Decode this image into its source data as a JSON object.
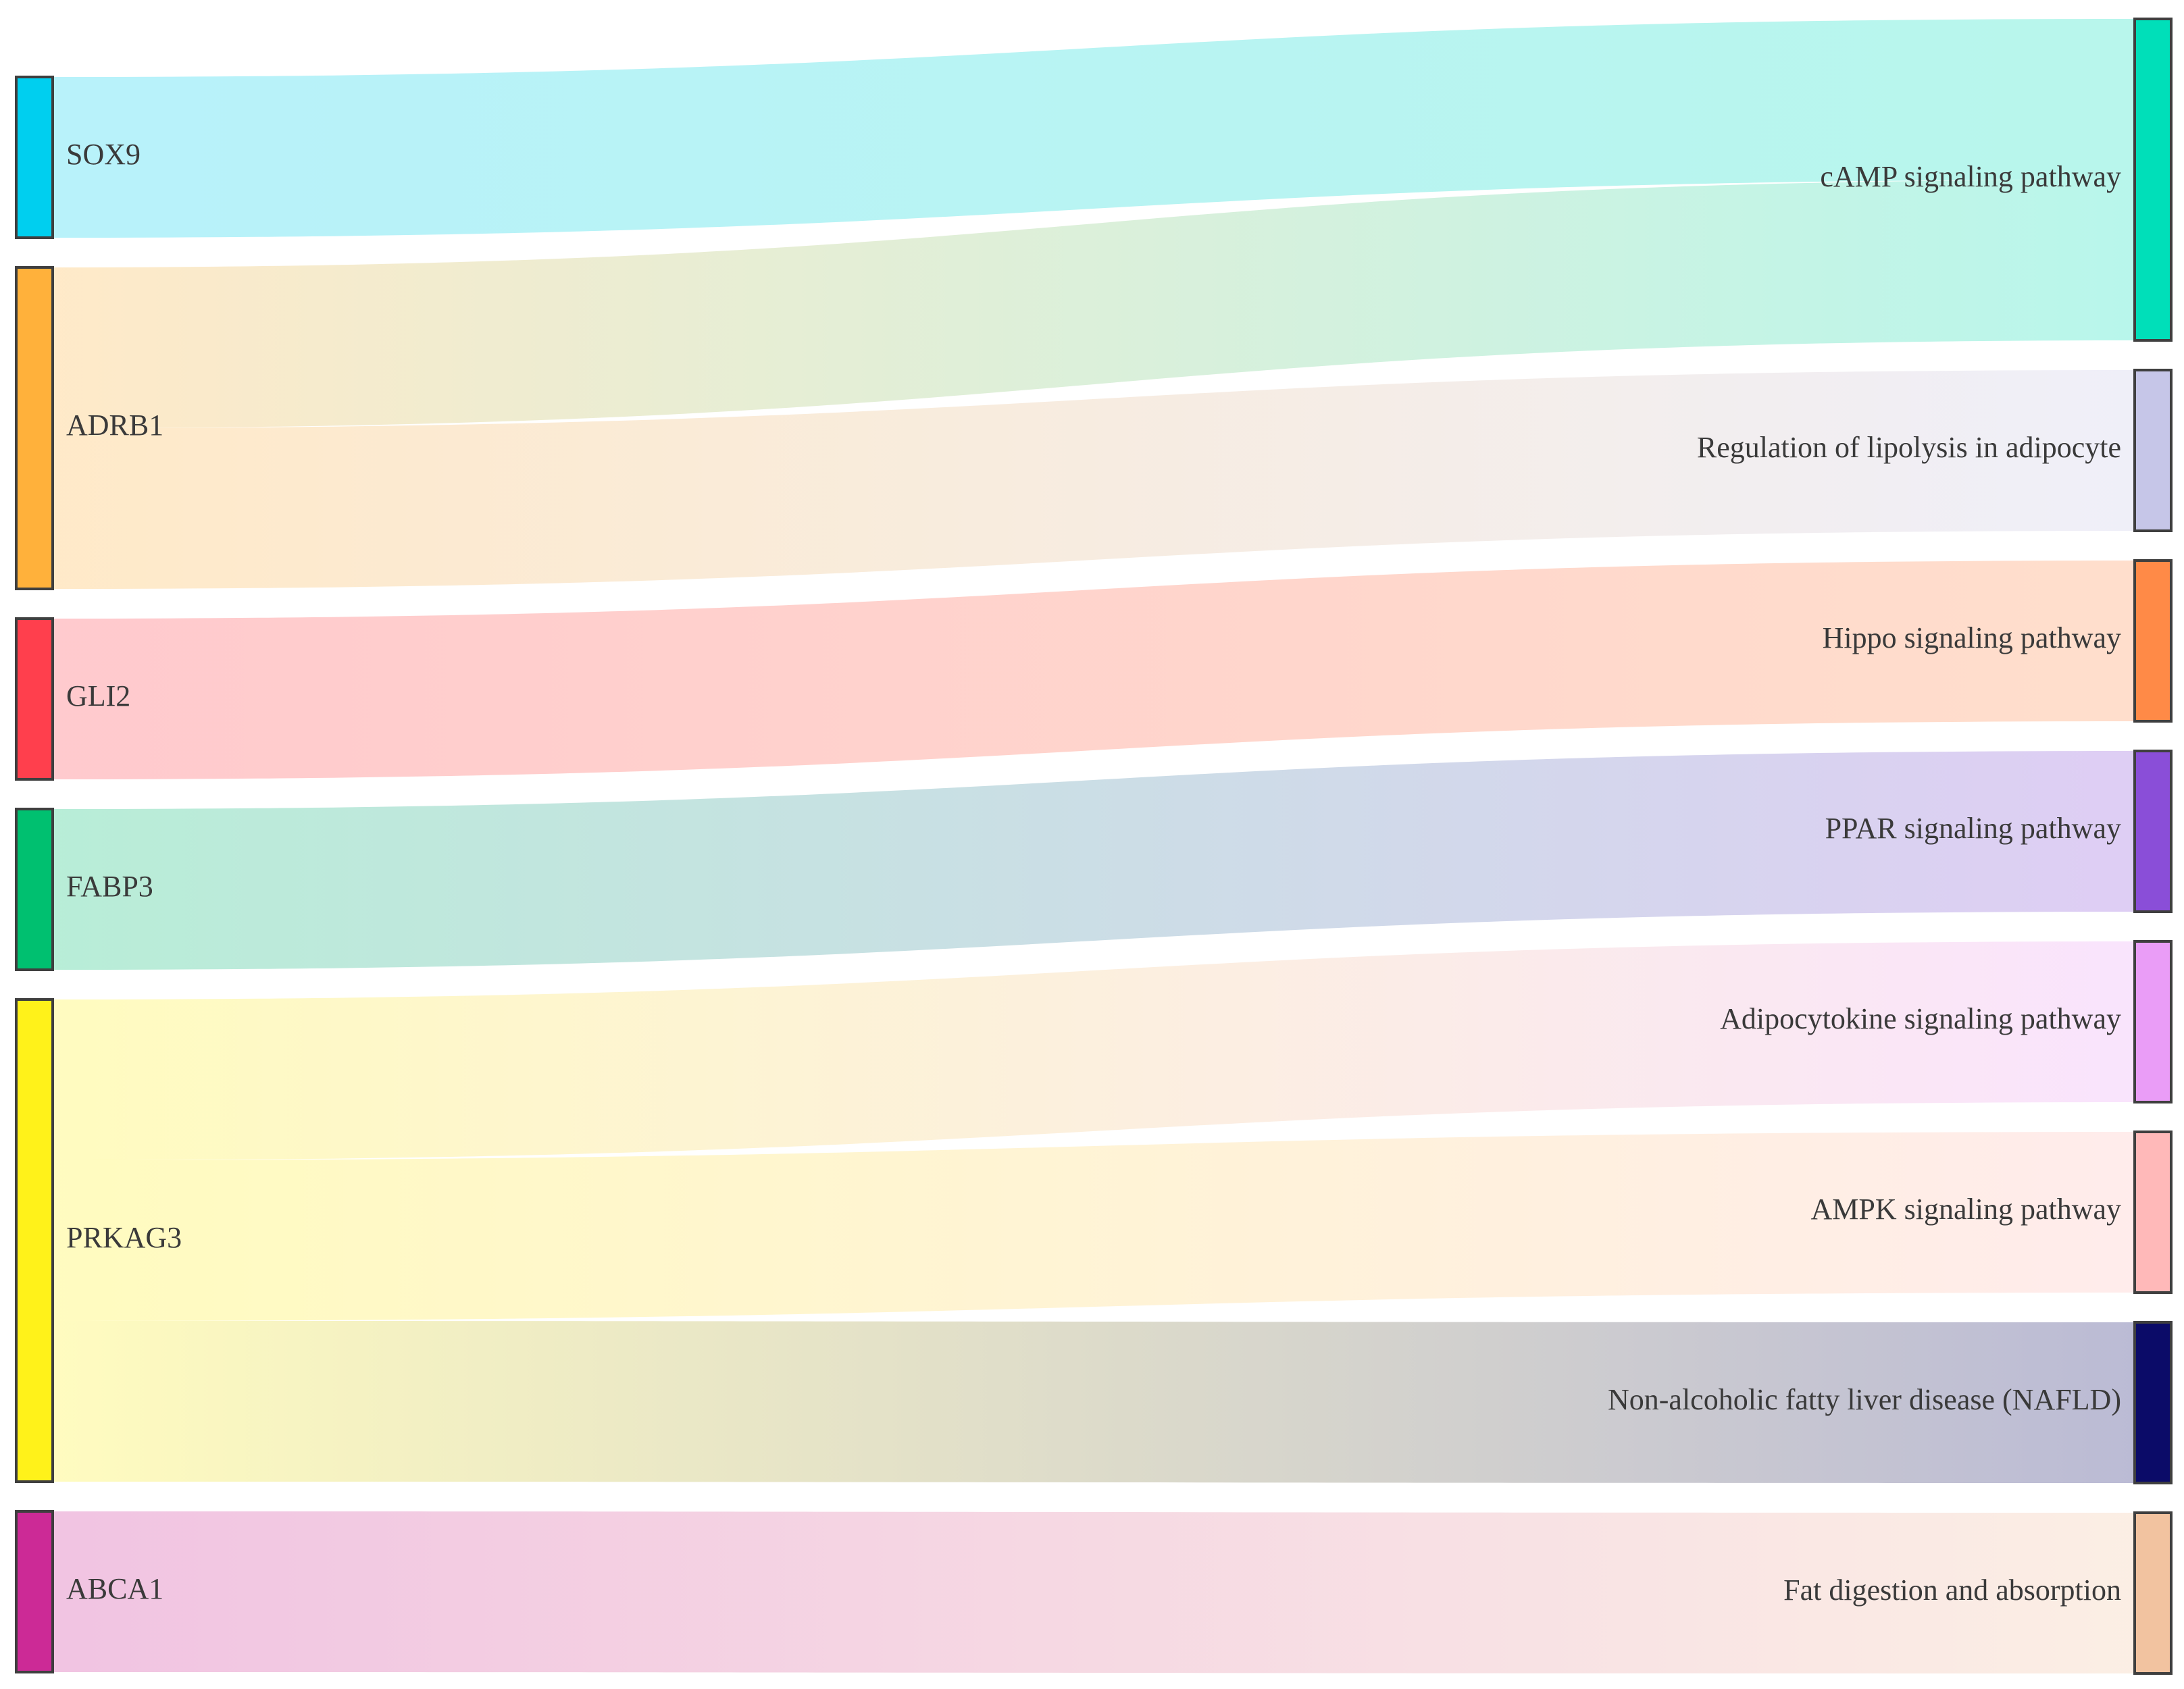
{
  "diagram": {
    "type": "sankey",
    "sources": [
      {
        "id": "SOX9",
        "label": "SOX9",
        "color": "#00cfef"
      },
      {
        "id": "ADRB1",
        "label": "ADRB1",
        "color": "#ffb13b"
      },
      {
        "id": "GLI2",
        "label": "GLI2",
        "color": "#ff3f4d"
      },
      {
        "id": "FABP3",
        "label": "FABP3",
        "color": "#00c070"
      },
      {
        "id": "PRKAG3",
        "label": "PRKAG3",
        "color": "#fff21a"
      },
      {
        "id": "ABCA1",
        "label": "ABCA1",
        "color": "#cc2a96"
      }
    ],
    "targets": [
      {
        "id": "camp",
        "label": "cAMP signaling pathway",
        "color": "#00dfb9"
      },
      {
        "id": "lipolysis",
        "label": "Regulation of lipolysis in adipocyte",
        "color": "#c6c6e8"
      },
      {
        "id": "hippo",
        "label": "Hippo signaling pathway",
        "color": "#ff8a47"
      },
      {
        "id": "ppar",
        "label": "PPAR signaling pathway",
        "color": "#8a4ed8"
      },
      {
        "id": "adipocytokine",
        "label": "Adipocytokine signaling pathway",
        "color": "#ea9df7"
      },
      {
        "id": "ampk",
        "label": "AMPK signaling pathway",
        "color": "#ffb9b9"
      },
      {
        "id": "nafld",
        "label": "Non-alcoholic fatty liver disease (NAFLD)",
        "color": "#0b0b68"
      },
      {
        "id": "fat",
        "label": "Fat digestion and absorption",
        "color": "#f2c3a0"
      }
    ],
    "links": [
      {
        "source": "SOX9",
        "target": "camp",
        "value": 1
      },
      {
        "source": "ADRB1",
        "target": "camp",
        "value": 1
      },
      {
        "source": "ADRB1",
        "target": "lipolysis",
        "value": 1
      },
      {
        "source": "GLI2",
        "target": "hippo",
        "value": 1
      },
      {
        "source": "FABP3",
        "target": "ppar",
        "value": 1
      },
      {
        "source": "PRKAG3",
        "target": "adipocytokine",
        "value": 1
      },
      {
        "source": "PRKAG3",
        "target": "ampk",
        "value": 1
      },
      {
        "source": "PRKAG3",
        "target": "nafld",
        "value": 1
      },
      {
        "source": "ABCA1",
        "target": "fat",
        "value": 1
      }
    ]
  }
}
